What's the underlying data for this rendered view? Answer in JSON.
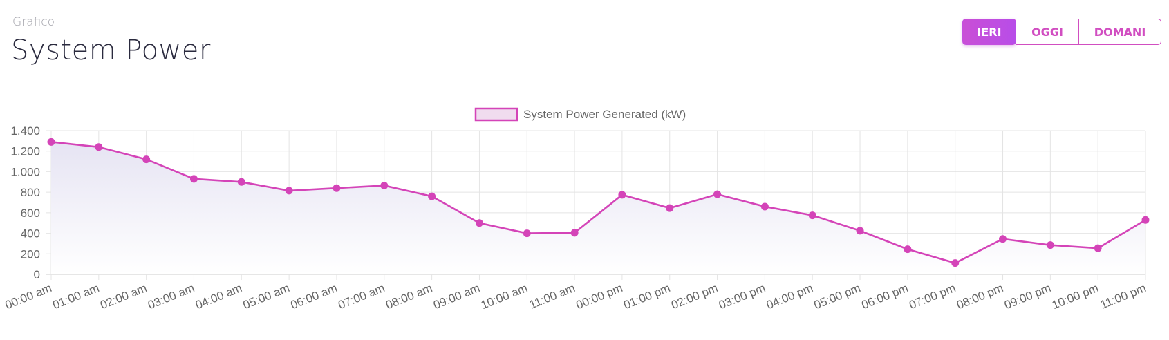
{
  "header": {
    "subtitle": "Grafico",
    "title": "System Power"
  },
  "buttons": [
    {
      "label": "IERI",
      "active": true
    },
    {
      "label": "OGGI",
      "active": false
    },
    {
      "label": "DOMANI",
      "active": false
    }
  ],
  "chart_data": {
    "type": "line",
    "categories": [
      "00:00 am",
      "01:00 am",
      "02:00 am",
      "03:00 am",
      "04:00 am",
      "05:00 am",
      "06:00 am",
      "07:00 am",
      "08:00 am",
      "09:00 am",
      "10:00 am",
      "11:00 am",
      "00:00 pm",
      "01:00 pm",
      "02:00 pm",
      "03:00 pm",
      "04:00 pm",
      "05:00 pm",
      "06:00 pm",
      "07:00 pm",
      "08:00 pm",
      "09:00 pm",
      "10:00 pm",
      "11:00 pm"
    ],
    "series": [
      {
        "name": "System Power Generated (kW)",
        "color": "#d444b8",
        "values": [
          1290,
          1240,
          1120,
          930,
          900,
          815,
          840,
          865,
          760,
          500,
          400,
          405,
          775,
          645,
          780,
          660,
          575,
          425,
          245,
          110,
          345,
          285,
          255,
          530
        ]
      }
    ],
    "ylim": [
      0,
      1400
    ],
    "yticks": [
      0,
      200,
      400,
      600,
      800,
      {
        "value": 1000,
        "label": "1.000"
      },
      {
        "value": 1200,
        "label": "1.200"
      },
      {
        "value": 1400,
        "label": "1.400"
      }
    ],
    "grid": true,
    "legend_position": "top"
  }
}
